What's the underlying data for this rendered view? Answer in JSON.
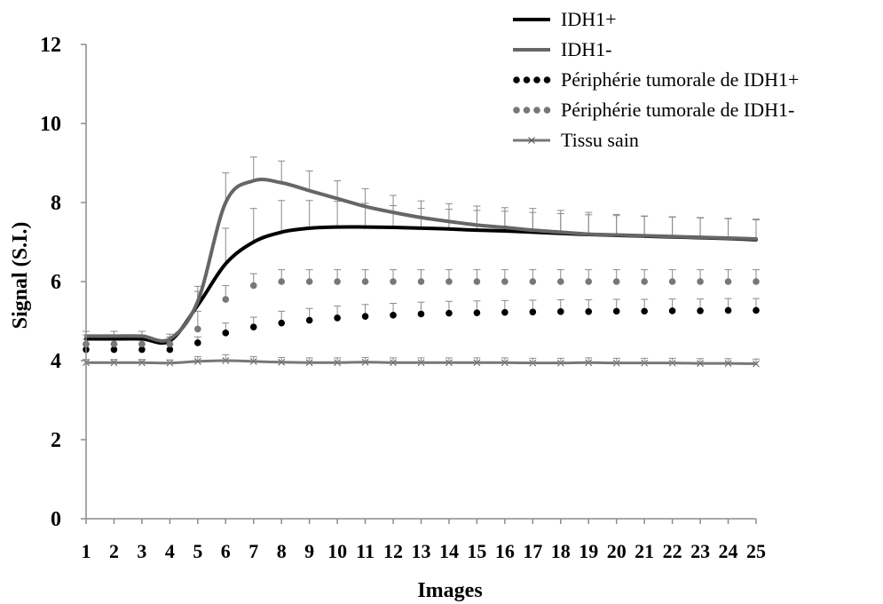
{
  "chart_data": {
    "type": "line",
    "xlabel": "Images",
    "ylabel": "Signal (S.I.)",
    "ylim": [
      0,
      12
    ],
    "yticks": [
      0,
      2,
      4,
      6,
      8,
      10,
      12
    ],
    "x": [
      1,
      2,
      3,
      4,
      5,
      6,
      7,
      8,
      9,
      10,
      11,
      12,
      13,
      14,
      15,
      16,
      17,
      18,
      19,
      20,
      21,
      22,
      23,
      24,
      25
    ],
    "grid": false,
    "legend_position": "top-right",
    "series": [
      {
        "name": "IDH1+",
        "style": "solid",
        "color": "#000000",
        "values": [
          4.55,
          4.55,
          4.55,
          4.5,
          5.4,
          6.45,
          7.0,
          7.25,
          7.35,
          7.38,
          7.38,
          7.37,
          7.35,
          7.33,
          7.3,
          7.28,
          7.25,
          7.22,
          7.19,
          7.17,
          7.15,
          7.13,
          7.11,
          7.09,
          7.06
        ],
        "errors": [
          0.1,
          0.1,
          0.1,
          0.1,
          0.35,
          0.9,
          0.85,
          0.8,
          0.7,
          0.65,
          0.6,
          0.55,
          0.5,
          0.5,
          0.5,
          0.5,
          0.5,
          0.5,
          0.5,
          0.5,
          0.5,
          0.5,
          0.5,
          0.5,
          0.5
        ]
      },
      {
        "name": "IDH1-",
        "style": "solid",
        "color": "#666666",
        "values": [
          4.62,
          4.62,
          4.62,
          4.55,
          5.5,
          8.0,
          8.55,
          8.5,
          8.3,
          8.1,
          7.9,
          7.75,
          7.62,
          7.52,
          7.43,
          7.37,
          7.3,
          7.25,
          7.2,
          7.18,
          7.16,
          7.14,
          7.12,
          7.1,
          7.08
        ],
        "errors": [
          0.12,
          0.12,
          0.12,
          0.12,
          0.38,
          0.75,
          0.6,
          0.55,
          0.5,
          0.45,
          0.45,
          0.43,
          0.42,
          0.45,
          0.48,
          0.5,
          0.55,
          0.55,
          0.55,
          0.52,
          0.5,
          0.5,
          0.5,
          0.5,
          0.5
        ]
      },
      {
        "name": "Périphérie tumorale de IDH1+",
        "style": "dotted",
        "color": "#000000",
        "values": [
          4.28,
          4.28,
          4.28,
          4.28,
          4.45,
          4.7,
          4.85,
          4.95,
          5.02,
          5.08,
          5.12,
          5.15,
          5.18,
          5.2,
          5.21,
          5.22,
          5.23,
          5.24,
          5.24,
          5.25,
          5.25,
          5.26,
          5.26,
          5.27,
          5.27
        ],
        "errors": [
          0.12,
          0.12,
          0.12,
          0.12,
          0.15,
          0.25,
          0.25,
          0.3,
          0.3,
          0.3,
          0.3,
          0.3,
          0.3,
          0.3,
          0.3,
          0.3,
          0.3,
          0.3,
          0.3,
          0.3,
          0.3,
          0.3,
          0.3,
          0.3,
          0.3
        ]
      },
      {
        "name": "Périphérie tumorale de IDH1-",
        "style": "dotted",
        "color": "#777777",
        "values": [
          4.42,
          4.42,
          4.42,
          4.42,
          4.8,
          5.55,
          5.9,
          6.0,
          6.0,
          6.0,
          6.0,
          6.0,
          6.0,
          6.0,
          6.0,
          6.0,
          6.0,
          6.0,
          6.0,
          6.0,
          6.0,
          6.0,
          6.0,
          6.0,
          6.0
        ],
        "errors": [
          0.12,
          0.12,
          0.12,
          0.12,
          0.45,
          0.35,
          0.3,
          0.3,
          0.3,
          0.3,
          0.3,
          0.3,
          0.3,
          0.3,
          0.3,
          0.3,
          0.3,
          0.3,
          0.3,
          0.3,
          0.3,
          0.3,
          0.3,
          0.3,
          0.3
        ]
      },
      {
        "name": "Tissu sain",
        "style": "solid-x",
        "color": "#777777",
        "values": [
          3.95,
          3.95,
          3.95,
          3.94,
          3.98,
          4.0,
          3.98,
          3.96,
          3.95,
          3.95,
          3.96,
          3.95,
          3.95,
          3.95,
          3.95,
          3.95,
          3.94,
          3.94,
          3.95,
          3.94,
          3.94,
          3.94,
          3.93,
          3.93,
          3.92
        ],
        "errors": [
          0.08,
          0.08,
          0.08,
          0.08,
          0.12,
          0.15,
          0.12,
          0.12,
          0.12,
          0.12,
          0.12,
          0.12,
          0.12,
          0.12,
          0.12,
          0.12,
          0.12,
          0.12,
          0.12,
          0.12,
          0.12,
          0.12,
          0.12,
          0.12,
          0.12
        ]
      }
    ]
  }
}
